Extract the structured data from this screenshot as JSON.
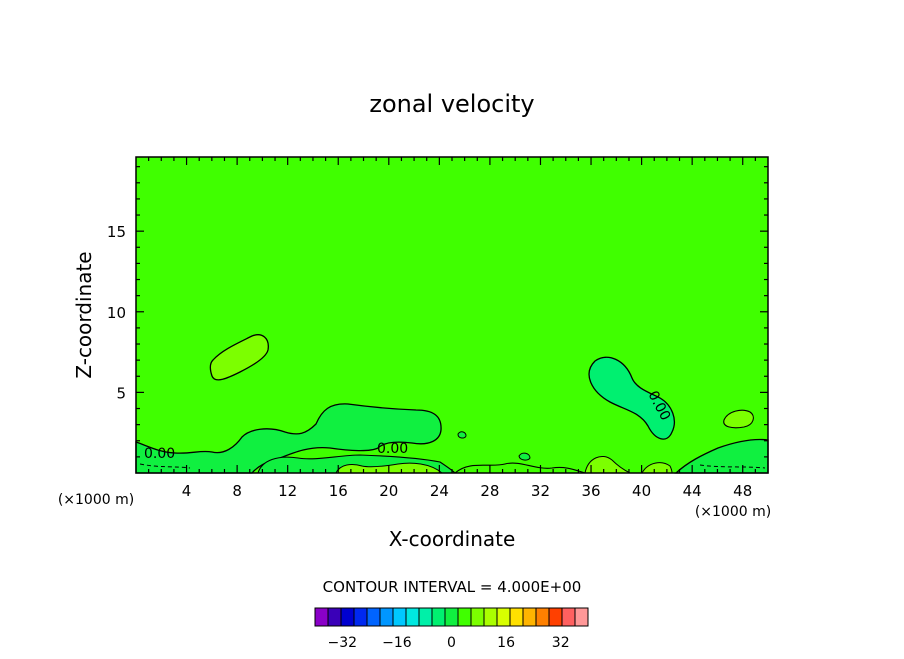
{
  "chart_data": {
    "type": "heatmap",
    "title": "zonal velocity",
    "xlabel": "X-coordinate",
    "ylabel": "Z-coordinate",
    "x_unit": "(×1000 m)",
    "xlim": [
      0,
      50
    ],
    "ylim": [
      0,
      19.6
    ],
    "x_ticks": [
      "4",
      "8",
      "12",
      "16",
      "20",
      "24",
      "28",
      "32",
      "36",
      "40",
      "44",
      "48"
    ],
    "y_ticks": [
      "5",
      "10",
      "15"
    ],
    "contour_interval_text": "CONTOUR INTERVAL = 4.000E+00",
    "contour_labels": [
      "0.00",
      "0.00",
      "0.00"
    ],
    "background_value": 0,
    "colorbar": {
      "ticks": [
        "−32",
        "−16",
        "0",
        "16",
        "32"
      ],
      "levels": [
        -40,
        -36,
        -32,
        -28,
        -24,
        -20,
        -16,
        -12,
        -8,
        -4,
        0,
        4,
        8,
        12,
        16,
        20,
        24,
        28,
        32,
        36,
        40
      ],
      "colors": [
        "#8a00c8",
        "#3a00b8",
        "#0000d0",
        "#0028f0",
        "#0064ff",
        "#0096ff",
        "#00c8ff",
        "#00e8e0",
        "#00f0a8",
        "#00f070",
        "#10f040",
        "#40ff00",
        "#7cff00",
        "#aaff00",
        "#d8ff00",
        "#ffe000",
        "#ffb400",
        "#ff8000",
        "#ff4000",
        "#ff6060",
        "#ff9898"
      ]
    },
    "features": [
      {
        "name": "positive-cell",
        "value": 4,
        "x_range": [
          6,
          10.5
        ],
        "z_range": [
          5.8,
          8.7
        ],
        "color": "#7cff00"
      },
      {
        "name": "negative-cell",
        "value": -4,
        "x_range": [
          35.5,
          42
        ],
        "z_range": [
          1.8,
          7.2
        ],
        "color": "#00f070"
      },
      {
        "name": "negative-low-band",
        "value": -4,
        "x_range": [
          0,
          50
        ],
        "z_range": [
          0,
          4
        ],
        "color": "#00f070"
      },
      {
        "name": "positive-right-blob",
        "value": 4,
        "x_range": [
          46.5,
          49
        ],
        "z_range": [
          2.8,
          4
        ],
        "color": "#7cff00"
      }
    ]
  },
  "colors": {
    "background": "#ffffff",
    "field": "#40ff00",
    "contour_line": "#000000"
  }
}
